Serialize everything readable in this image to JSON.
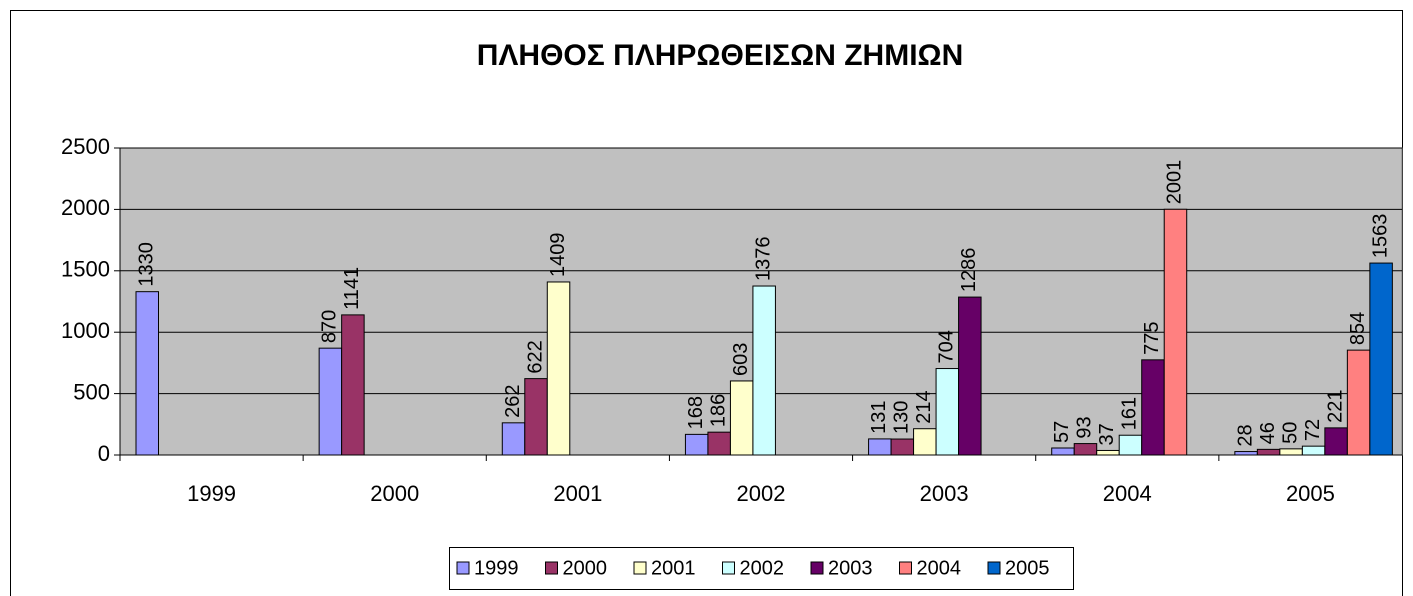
{
  "chart_data": {
    "type": "bar",
    "title": "ΠΛΗΘΟΣ ΠΛΗΡΩΘΕΙΣΩΝ  ΖΗΜΙΩΝ",
    "categories": [
      "1999",
      "2000",
      "2001",
      "2002",
      "2003",
      "2004",
      "2005"
    ],
    "series": [
      {
        "name": "1999",
        "color": "#9999ff",
        "values": [
          1330,
          870,
          262,
          168,
          131,
          57,
          28
        ]
      },
      {
        "name": "2000",
        "color": "#993366",
        "values": [
          null,
          1141,
          622,
          186,
          130,
          93,
          46
        ]
      },
      {
        "name": "2001",
        "color": "#ffffcc",
        "values": [
          null,
          null,
          1409,
          603,
          214,
          37,
          50
        ]
      },
      {
        "name": "2002",
        "color": "#ccffff",
        "values": [
          null,
          null,
          null,
          1376,
          704,
          161,
          72
        ]
      },
      {
        "name": "2003",
        "color": "#660066",
        "values": [
          null,
          null,
          null,
          null,
          1286,
          775,
          221
        ]
      },
      {
        "name": "2004",
        "color": "#ff8080",
        "values": [
          null,
          null,
          null,
          null,
          null,
          2001,
          854
        ]
      },
      {
        "name": "2005",
        "color": "#0066cc",
        "values": [
          null,
          null,
          null,
          null,
          null,
          null,
          1563
        ]
      }
    ],
    "ylim": [
      0,
      2500
    ],
    "yticks": [
      0,
      500,
      1000,
      1500,
      2000,
      2500
    ],
    "grid": true,
    "legend": "bottom"
  }
}
